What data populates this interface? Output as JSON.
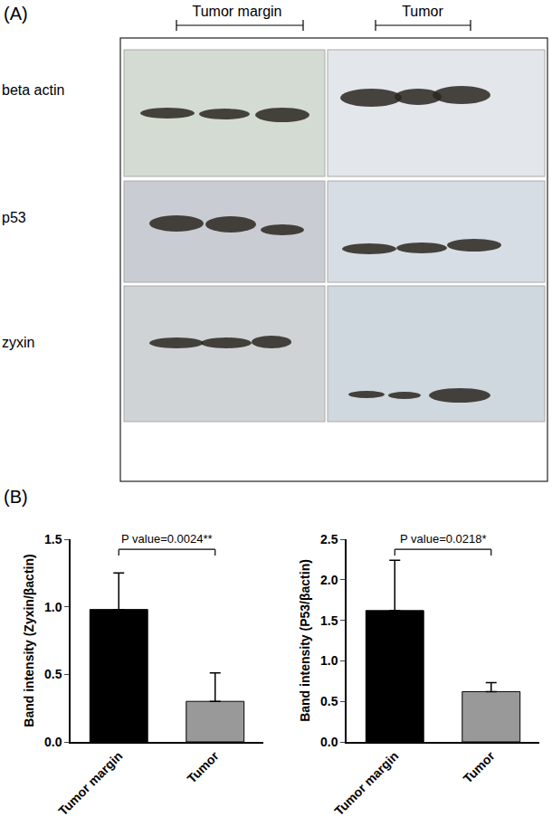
{
  "blot": {
    "panel": "(A)",
    "groups": [
      "Tumor margin",
      "Tumor"
    ],
    "rows": [
      "beta actin",
      "p53",
      "zyxin"
    ]
  },
  "charts_panel": "(B)",
  "chart_data": [
    {
      "type": "bar",
      "y_label": "Band intensity (Zyxin/βactin)",
      "categories": [
        "Tumor margin",
        "Tumor"
      ],
      "values": [
        0.98,
        0.3
      ],
      "errors": [
        0.27,
        0.21
      ],
      "colors": [
        "#000000",
        "#999999"
      ],
      "ylim": [
        0,
        1.5
      ],
      "yticks": [
        {
          "value": 0,
          "label": "0.0"
        },
        {
          "value": 0.5,
          "label": "0.5"
        },
        {
          "value": 1,
          "label": "1.0"
        },
        {
          "value": 1.5,
          "label": "1.5"
        }
      ],
      "annotations": [
        "P value=0.0024**"
      ],
      "grid": false
    },
    {
      "type": "bar",
      "y_label": "Band intensity (P53/βactin)",
      "categories": [
        "Tumor margin",
        "Tumor"
      ],
      "values": [
        1.62,
        0.62
      ],
      "errors": [
        0.62,
        0.11
      ],
      "colors": [
        "#000000",
        "#999999"
      ],
      "ylim": [
        0,
        2.5
      ],
      "yticks": [
        {
          "value": 0,
          "label": "0.0"
        },
        {
          "value": 0.5,
          "label": "0.5"
        },
        {
          "value": 1,
          "label": "1.0"
        },
        {
          "value": 1.5,
          "label": "1.5"
        },
        {
          "value": 2,
          "label": "2.0"
        },
        {
          "value": 2.5,
          "label": "2.5"
        }
      ],
      "annotations": [
        "P value=0.0218*"
      ],
      "grid": false
    }
  ]
}
